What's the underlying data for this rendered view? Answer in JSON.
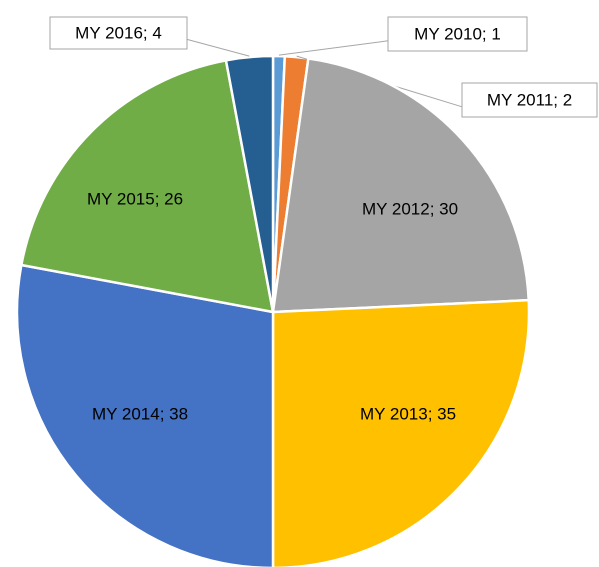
{
  "chart_data": {
    "type": "pie",
    "categories": [
      "MY 2010",
      "MY 2011",
      "MY 2012",
      "MY 2013",
      "MY 2014",
      "MY 2015",
      "MY 2016"
    ],
    "values": [
      1,
      2,
      30,
      35,
      38,
      26,
      4
    ],
    "value_labels": [
      "MY 2010; 1",
      "MY 2011; 2",
      "MY 2012; 30",
      "MY 2013; 35",
      "MY 2014; 38",
      "MY 2015; 26",
      "MY 2016; 4"
    ],
    "colors": [
      "#5b9bd5",
      "#ed7d31",
      "#a5a5a5",
      "#ffc000",
      "#4472c4",
      "#70ad47",
      "#255e91"
    ]
  }
}
